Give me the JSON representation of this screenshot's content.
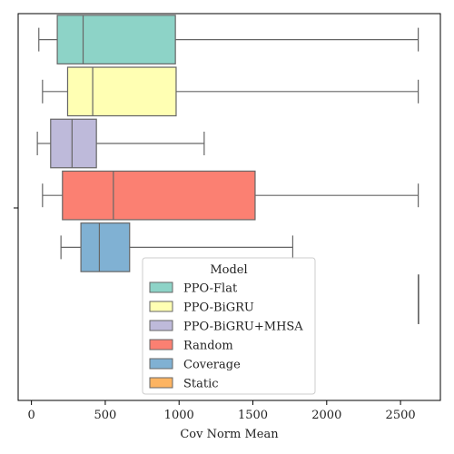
{
  "chart_data": {
    "type": "box",
    "orientation": "horizontal",
    "title": "",
    "xlabel": "Cov Norm Mean",
    "ylabel": "",
    "xlim": [
      -90,
      2770
    ],
    "xticks": [
      0,
      500,
      1000,
      1500,
      2000,
      2500
    ],
    "grid": false,
    "legend": {
      "title": "Model",
      "placement": "lower-center",
      "entries": [
        "PPO-Flat",
        "PPO-BiGRU",
        "PPO-BiGRU+MHSA",
        "Random",
        "Coverage",
        "Static"
      ]
    },
    "series": [
      {
        "name": "PPO-Flat",
        "color": "#8dd3c7",
        "whislo": 50,
        "q1": 175,
        "median": 350,
        "q3": 975,
        "whishi": 2620
      },
      {
        "name": "PPO-BiGRU",
        "color": "#ffffb3",
        "whislo": 75,
        "q1": 245,
        "median": 415,
        "q3": 980,
        "whishi": 2620
      },
      {
        "name": "PPO-BiGRU+MHSA",
        "color": "#bebada",
        "whislo": 40,
        "q1": 130,
        "median": 275,
        "q3": 440,
        "whishi": 1170
      },
      {
        "name": "Random",
        "color": "#fb8072",
        "whislo": 75,
        "q1": 210,
        "median": 555,
        "q3": 1515,
        "whishi": 2620
      },
      {
        "name": "Coverage",
        "color": "#80b1d3",
        "whislo": 200,
        "q1": 335,
        "median": 460,
        "q3": 665,
        "whishi": 1770
      },
      {
        "name": "Static",
        "color": "#fdb462",
        "whislo": 2620,
        "q1": 2620,
        "median": 2620,
        "q3": 2620,
        "whishi": 2620
      }
    ]
  }
}
